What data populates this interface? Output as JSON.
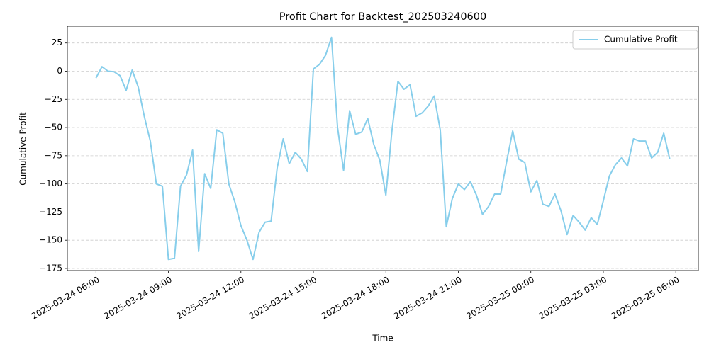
{
  "chart_data": {
    "type": "line",
    "title": "Profit Chart for Backtest_202503240600",
    "xlabel": "Time",
    "ylabel": "Cumulative Profit",
    "x": [
      "2025-03-24 06:00",
      "2025-03-24 06:15",
      "2025-03-24 06:30",
      "2025-03-24 06:45",
      "2025-03-24 07:00",
      "2025-03-24 07:15",
      "2025-03-24 07:30",
      "2025-03-24 07:45",
      "2025-03-24 08:00",
      "2025-03-24 08:15",
      "2025-03-24 08:30",
      "2025-03-24 08:45",
      "2025-03-24 09:00",
      "2025-03-24 09:15",
      "2025-03-24 09:30",
      "2025-03-24 09:45",
      "2025-03-24 10:00",
      "2025-03-24 10:15",
      "2025-03-24 10:30",
      "2025-03-24 10:45",
      "2025-03-24 11:00",
      "2025-03-24 11:15",
      "2025-03-24 11:30",
      "2025-03-24 11:45",
      "2025-03-24 12:00",
      "2025-03-24 12:15",
      "2025-03-24 12:30",
      "2025-03-24 12:45",
      "2025-03-24 13:00",
      "2025-03-24 13:15",
      "2025-03-24 13:30",
      "2025-03-24 13:45",
      "2025-03-24 14:00",
      "2025-03-24 14:15",
      "2025-03-24 14:30",
      "2025-03-24 14:45",
      "2025-03-24 15:00",
      "2025-03-24 15:15",
      "2025-03-24 15:30",
      "2025-03-24 15:45",
      "2025-03-24 16:00",
      "2025-03-24 16:15",
      "2025-03-24 16:30",
      "2025-03-24 16:45",
      "2025-03-24 17:00",
      "2025-03-24 17:15",
      "2025-03-24 17:30",
      "2025-03-24 17:45",
      "2025-03-24 18:00",
      "2025-03-24 18:15",
      "2025-03-24 18:30",
      "2025-03-24 18:45",
      "2025-03-24 19:00",
      "2025-03-24 19:15",
      "2025-03-24 19:30",
      "2025-03-24 19:45",
      "2025-03-24 20:00",
      "2025-03-24 20:15",
      "2025-03-24 20:30",
      "2025-03-24 20:45",
      "2025-03-24 21:00",
      "2025-03-24 21:15",
      "2025-03-24 21:30",
      "2025-03-24 21:45",
      "2025-03-24 22:00",
      "2025-03-24 22:15",
      "2025-03-24 22:30",
      "2025-03-24 22:45",
      "2025-03-24 23:00",
      "2025-03-24 23:15",
      "2025-03-24 23:30",
      "2025-03-24 23:45",
      "2025-03-25 00:00",
      "2025-03-25 00:15",
      "2025-03-25 00:30",
      "2025-03-25 00:45",
      "2025-03-25 01:00",
      "2025-03-25 01:15",
      "2025-03-25 01:30",
      "2025-03-25 01:45",
      "2025-03-25 02:00",
      "2025-03-25 02:15",
      "2025-03-25 02:30",
      "2025-03-25 02:45",
      "2025-03-25 03:00",
      "2025-03-25 03:15",
      "2025-03-25 03:30",
      "2025-03-25 03:45",
      "2025-03-25 04:00",
      "2025-03-25 04:15",
      "2025-03-25 04:30",
      "2025-03-25 04:45",
      "2025-03-25 05:00",
      "2025-03-25 05:15",
      "2025-03-25 05:30",
      "2025-03-25 05:45"
    ],
    "series": [
      {
        "name": "Cumulative Profit",
        "color": "#87ceeb",
        "values": [
          -6,
          4,
          0,
          -0.5,
          -4,
          -17,
          1,
          -14,
          -40,
          -62,
          -100,
          -102,
          -167,
          -166,
          -102,
          -92,
          -70,
          -160,
          -91,
          -104,
          -52,
          -55,
          -100,
          -116,
          -137,
          -150,
          -167,
          -143,
          -134,
          -133,
          -86,
          -60,
          -82,
          -72,
          -78,
          -89,
          2,
          6,
          14,
          30,
          -50,
          -88,
          -35,
          -56,
          -54,
          -42,
          -65,
          -79,
          -110,
          -53,
          -9,
          -16,
          -12,
          -40,
          -37,
          -31,
          -22,
          -52,
          -138,
          -113,
          -100,
          -105,
          -98,
          -110,
          -127,
          -120,
          -109,
          -109,
          -80,
          -53,
          -78,
          -81,
          -107,
          -97,
          -118,
          -120,
          -109,
          -124,
          -145,
          -128,
          -134,
          -141,
          -130,
          -136,
          -115,
          -93,
          -83,
          -77,
          -84,
          -60,
          -62,
          -62,
          -77,
          -72,
          -55,
          -78
        ]
      }
    ],
    "xlim": [
      "2025-03-24 04:49",
      "2025-03-25 06:56"
    ],
    "xticks": [
      "2025-03-24 06:00",
      "2025-03-24 09:00",
      "2025-03-24 12:00",
      "2025-03-24 15:00",
      "2025-03-24 18:00",
      "2025-03-24 21:00",
      "2025-03-25 00:00",
      "2025-03-25 03:00",
      "2025-03-25 06:00"
    ],
    "ylim": [
      -176.9,
      39.9
    ],
    "yticks": [
      {
        "value": -175,
        "label": "−175"
      },
      {
        "value": -150,
        "label": "−150"
      },
      {
        "value": -125,
        "label": "−125"
      },
      {
        "value": -100,
        "label": "−100"
      },
      {
        "value": -75,
        "label": "−75"
      },
      {
        "value": -50,
        "label": "−50"
      },
      {
        "value": -25,
        "label": "−25"
      },
      0,
      25
    ],
    "grid": "y",
    "legend": "upper right"
  }
}
